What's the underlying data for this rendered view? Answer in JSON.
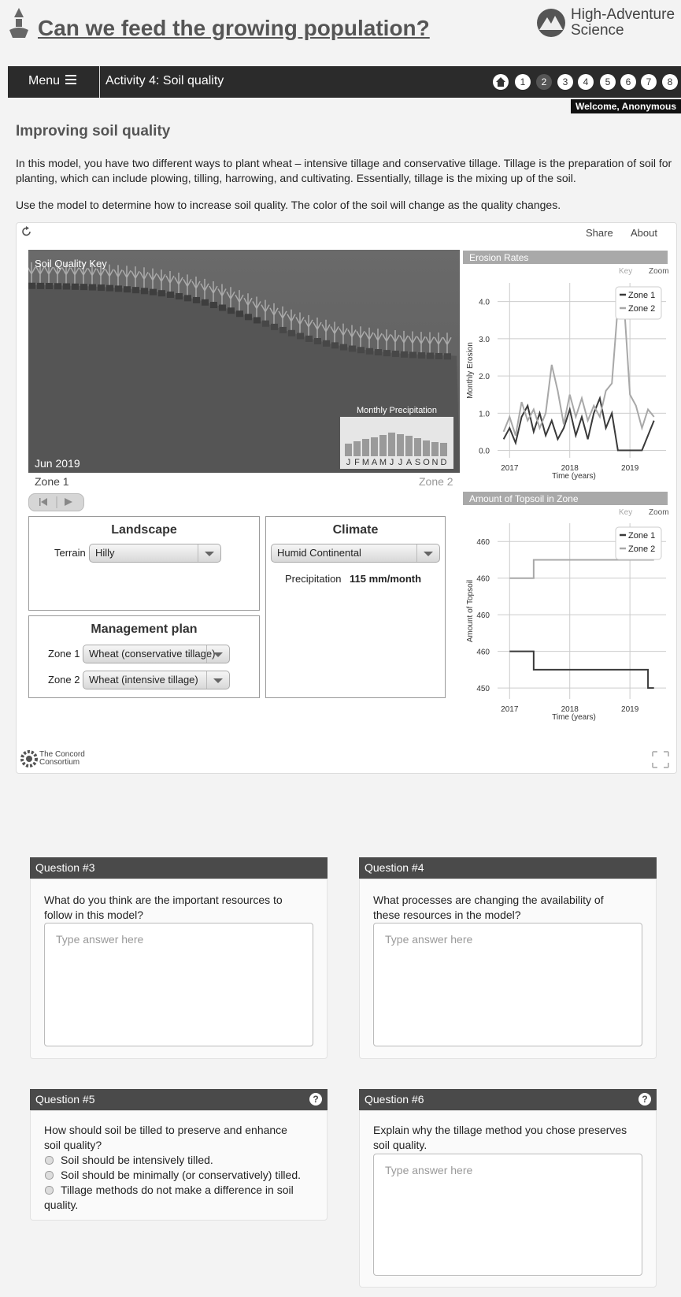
{
  "header": {
    "title": "Can we feed the growing population?",
    "brand": [
      "High-Adventure",
      "Science"
    ]
  },
  "nav": {
    "menu": "Menu",
    "activity": "Activity 4: Soil quality",
    "pages": [
      1,
      2,
      3,
      4,
      5,
      6,
      7,
      8
    ],
    "welcome": "Welcome, Anonymous"
  },
  "intro": {
    "heading": "Improving soil quality",
    "paragraphs": [
      "In this model, you have two different ways to plant wheat – intensive tillage and conservative tillage. Tillage is the preparation of soil for planting, which can include plowing, tilling, harrowing, and cultivating. Essentially, tillage is the mixing up of the soil.",
      "Use the model to determine how to increase soil quality. The color of the soil will change as the quality changes."
    ]
  },
  "model": {
    "share": "Share",
    "about": "About",
    "key_label": "Soil Quality Key",
    "date": "Jun 2019",
    "zone_labels": [
      "Zone 1",
      "Zone 2"
    ],
    "precipitation": {
      "title": "Monthly Precipitation",
      "months": [
        "J",
        "F",
        "M",
        "A",
        "M",
        "J",
        "J",
        "A",
        "S",
        "O",
        "N",
        "D"
      ],
      "values": [
        80,
        95,
        110,
        120,
        135,
        150,
        140,
        130,
        115,
        100,
        90,
        85
      ]
    },
    "landscape": {
      "title": "Landscape",
      "terrain_label": "Terrain",
      "terrain": "Hilly"
    },
    "climate": {
      "title": "Climate",
      "climate": "Humid Continental",
      "precip_label": "Precipitation",
      "precip_value": "115 mm/month"
    },
    "management": {
      "title": "Management plan",
      "rows": [
        {
          "label": "Zone 1",
          "value": "Wheat (conservative tillage)"
        },
        {
          "label": "Zone 2",
          "value": "Wheat (intensive tillage)"
        }
      ]
    },
    "erosion_chart": {
      "type": "line",
      "title": "Erosion Rates",
      "key": "Key",
      "zoom": "Zoom",
      "ylabel": "Monthly Erosion",
      "xlabel": "Time (years)",
      "x": [
        2016.9,
        2017.0,
        2017.1,
        2017.2,
        2017.3,
        2017.4,
        2017.5,
        2017.6,
        2017.7,
        2017.8,
        2017.9,
        2018.0,
        2018.1,
        2018.2,
        2018.3,
        2018.4,
        2018.5,
        2018.6,
        2018.7,
        2018.8,
        2018.9,
        2019.0,
        2019.1,
        2019.2,
        2019.3,
        2019.4
      ],
      "xlim": [
        2016.8,
        2019.6
      ],
      "xticks": [
        2017,
        2018,
        2019
      ],
      "ylim": [
        -0.2,
        4.5
      ],
      "yticks": [
        {
          "value": 0,
          "label": "0.0"
        },
        {
          "value": 1,
          "label": "1.0"
        },
        {
          "value": 2,
          "label": "2.0"
        },
        {
          "value": 3,
          "label": "3.0"
        },
        {
          "value": 4,
          "label": "4.0"
        }
      ],
      "grid": true,
      "series": [
        {
          "name": "Zone 1",
          "color": "#3a3a3a",
          "values": [
            0.3,
            0.6,
            0.2,
            0.9,
            1.2,
            0.5,
            1.0,
            0.4,
            0.8,
            0.3,
            0.6,
            1.1,
            0.4,
            0.9,
            0.3,
            1.0,
            1.4,
            0.6,
            1.0,
            0.0,
            0.0,
            0.0,
            0.0,
            0.0,
            0.4,
            0.8
          ]
        },
        {
          "name": "Zone 2",
          "color": "#a8a8a8",
          "values": [
            0.5,
            0.9,
            0.4,
            1.3,
            0.8,
            1.1,
            0.6,
            1.0,
            2.3,
            1.6,
            0.7,
            1.5,
            0.9,
            1.4,
            0.8,
            1.2,
            0.9,
            1.6,
            1.8,
            3.9,
            4.0,
            1.5,
            1.2,
            0.6,
            1.1,
            0.9
          ]
        }
      ]
    },
    "topsoil_chart": {
      "type": "line",
      "title": "Amount of Topsoil in Zone",
      "key": "Key",
      "zoom": "Zoom",
      "ylabel": "Amount of Topsoil",
      "xlabel": "Time (years)",
      "x": [
        2017.0,
        2017.4,
        2017.4,
        2019.3,
        2019.3,
        2019.4
      ],
      "xlim": [
        2016.8,
        2019.6
      ],
      "xticks": [
        2017,
        2018,
        2019
      ],
      "ylim": [
        453.7,
        458.5
      ],
      "yticks": [
        {
          "value": 454,
          "label": "450"
        },
        {
          "value": 455,
          "label": "460"
        },
        {
          "value": 456,
          "label": "460"
        },
        {
          "value": 457,
          "label": "460"
        },
        {
          "value": 458,
          "label": "460"
        }
      ],
      "grid": true,
      "series": [
        {
          "name": "Zone 1",
          "color": "#3a3a3a",
          "values": [
            455,
            455,
            454.5,
            454.5,
            454,
            454
          ]
        },
        {
          "name": "Zone 2",
          "color": "#a8a8a8",
          "values": [
            457,
            457,
            457.5,
            457.5,
            457.5,
            457.5
          ]
        }
      ]
    },
    "credit": [
      "The Concord",
      "Consortium"
    ]
  },
  "questions": [
    {
      "title": "Question #3",
      "prompt": "What do you think are the important resources to follow in this model?",
      "placeholder": "Type answer here"
    },
    {
      "title": "Question #4",
      "prompt": "What processes are changing the availability of these resources in the model?",
      "placeholder": "Type answer here"
    },
    {
      "title": "Question #5",
      "help": "?",
      "prompt": "How should soil be tilled to preserve and enhance soil quality?",
      "options": [
        "Soil should be intensively tilled.",
        "Soil should be minimally (or conservatively) tilled.",
        "Tillage methods do not make a difference in soil quality."
      ]
    },
    {
      "title": "Question #6",
      "help": "?",
      "prompt": "Explain why the tillage method you chose preserves soil quality.",
      "placeholder": "Type answer here"
    }
  ]
}
